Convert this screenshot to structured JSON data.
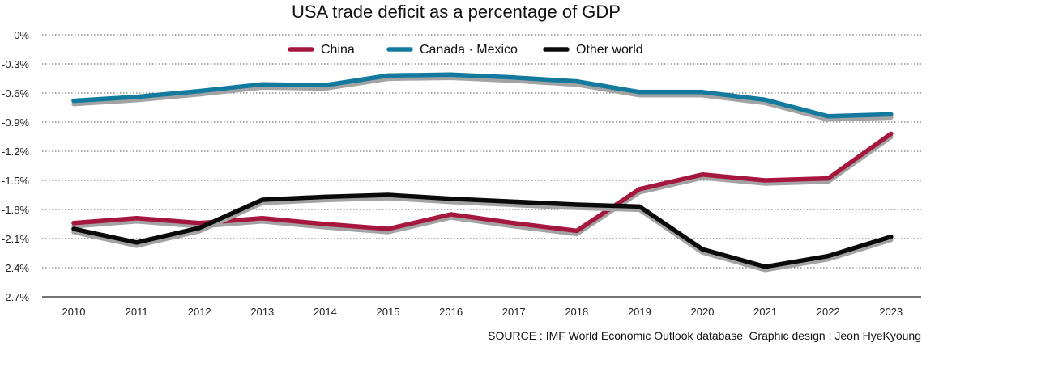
{
  "chart_data": {
    "type": "line",
    "title": "USA trade deficit as a percentage of GDP",
    "x": [
      "2010",
      "2011",
      "2012",
      "2013",
      "2014",
      "2015",
      "2016",
      "2017",
      "2018",
      "2019",
      "2020",
      "2021",
      "2022",
      "2023"
    ],
    "yticks": [
      "0%",
      "-0.3%",
      "-0.6%",
      "-0.9%",
      "-1.2%",
      "-1.5%",
      "-1.8%",
      "-2.1%",
      "-2.4%",
      "-2.7%"
    ],
    "ylim": [
      -2.7,
      0
    ],
    "grid": true,
    "legend_position": "top",
    "series": [
      {
        "name": "China",
        "color": "#a6173d",
        "values": [
          -1.94,
          -1.89,
          -1.94,
          -1.89,
          -1.95,
          -2.0,
          -1.85,
          -1.94,
          -2.02,
          -1.59,
          -1.44,
          -1.5,
          -1.48,
          -1.02
        ]
      },
      {
        "name": "Canada · Mexico",
        "color": "#137a9e",
        "values": [
          -0.68,
          -0.64,
          -0.58,
          -0.51,
          -0.52,
          -0.42,
          -0.41,
          -0.44,
          -0.48,
          -0.59,
          -0.59,
          -0.67,
          -0.84,
          -0.82
        ]
      },
      {
        "name": "Other world",
        "color": "#0a0a0a",
        "values": [
          -2.0,
          -2.14,
          -1.99,
          -1.7,
          -1.67,
          -1.65,
          -1.69,
          -1.72,
          -1.75,
          -1.77,
          -2.21,
          -2.39,
          -2.28,
          -2.08
        ]
      }
    ],
    "source": "SOURCE : IMF World Economic Outlook database",
    "credit": "Graphic design : Jeon HyeKyoung"
  }
}
